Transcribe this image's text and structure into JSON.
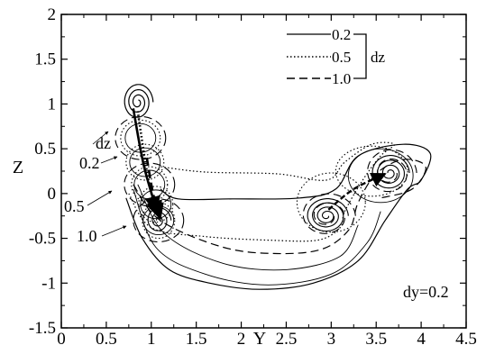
{
  "chart_data": {
    "type": "line",
    "title": "",
    "xlabel": "Y",
    "ylabel": "Z",
    "xlim": [
      0,
      4.5
    ],
    "ylim": [
      -1.5,
      2
    ],
    "xticks": [
      "0",
      "0.5",
      "1",
      "1.5",
      "2",
      "2.5",
      "3",
      "3.5",
      "4",
      "4.5"
    ],
    "yticks": [
      "-1.5",
      "-1",
      "-0.5",
      "0",
      "0.5",
      "1",
      "1.5",
      "2"
    ],
    "grid": false,
    "legend": {
      "placement": "top-right",
      "group_label": "dz",
      "entries": [
        {
          "label": "0.2",
          "style": "solid"
        },
        {
          "label": "0.5",
          "style": "dotted"
        },
        {
          "label": "1.0",
          "style": "dashed"
        }
      ]
    },
    "annotations": {
      "side_label": "dz",
      "side_values": [
        "0.2",
        "0.5",
        "1.0"
      ],
      "corner_label": "dy=0.2"
    },
    "vortex_centers": {
      "left_upper": [
        0.85,
        1.02
      ],
      "left_lower": [
        1.08,
        -0.3
      ],
      "right_low": [
        2.95,
        -0.25
      ],
      "right_high": [
        3.65,
        0.23
      ]
    },
    "series": [
      {
        "label": "0.2",
        "style": "solid",
        "outer_path": [
          [
            0.72,
            -0.05
          ],
          [
            0.9,
            -0.5
          ],
          [
            1.2,
            -0.85
          ],
          [
            1.65,
            -1.0
          ],
          [
            2.2,
            -1.07
          ],
          [
            2.8,
            -1.0
          ],
          [
            3.3,
            -0.75
          ],
          [
            3.6,
            -0.3
          ],
          [
            3.85,
            0.05
          ],
          [
            4.0,
            0.15
          ],
          [
            4.1,
            0.45
          ],
          [
            3.8,
            0.55
          ],
          [
            3.3,
            0.42
          ],
          [
            3.05,
            0.05
          ],
          [
            2.65,
            -0.05
          ],
          [
            1.9,
            -0.06
          ],
          [
            1.3,
            -0.06
          ],
          [
            1.1,
            0.05
          ]
        ],
        "connector": [
          [
            0.8,
            0.95
          ],
          [
            0.92,
            0.3
          ],
          [
            1.08,
            -0.25
          ]
        ]
      },
      {
        "label": "0.5",
        "style": "dotted",
        "outer_path": [
          [
            0.75,
            0.0
          ],
          [
            1.0,
            -0.38
          ],
          [
            1.6,
            -0.48
          ],
          [
            2.3,
            -0.52
          ],
          [
            2.85,
            -0.52
          ],
          [
            3.1,
            -0.38
          ],
          [
            3.15,
            -0.2
          ],
          [
            3.35,
            0.15
          ],
          [
            3.55,
            0.42
          ],
          [
            3.7,
            0.55
          ],
          [
            3.45,
            0.55
          ],
          [
            3.15,
            0.35
          ],
          [
            2.95,
            0.15
          ],
          [
            2.4,
            0.22
          ],
          [
            1.6,
            0.24
          ],
          [
            1.1,
            0.3
          ]
        ],
        "connector": [
          [
            0.85,
            0.92
          ],
          [
            0.95,
            0.25
          ],
          [
            1.05,
            -0.2
          ]
        ]
      },
      {
        "label": "1.0",
        "style": "dashed",
        "outer_path": [
          [
            0.8,
            0.1
          ],
          [
            1.1,
            -0.3
          ],
          [
            1.8,
            -0.6
          ],
          [
            2.4,
            -0.67
          ],
          [
            2.9,
            -0.62
          ],
          [
            3.2,
            -0.4
          ],
          [
            3.3,
            -0.1
          ],
          [
            3.5,
            0.22
          ],
          [
            3.8,
            0.38
          ],
          [
            4.05,
            0.3
          ],
          [
            3.9,
            0.05
          ],
          [
            3.55,
            -0.05
          ]
        ],
        "connector": [
          [
            0.95,
            0.4
          ],
          [
            1.02,
            0.0
          ],
          [
            1.1,
            -0.28
          ]
        ]
      }
    ]
  }
}
